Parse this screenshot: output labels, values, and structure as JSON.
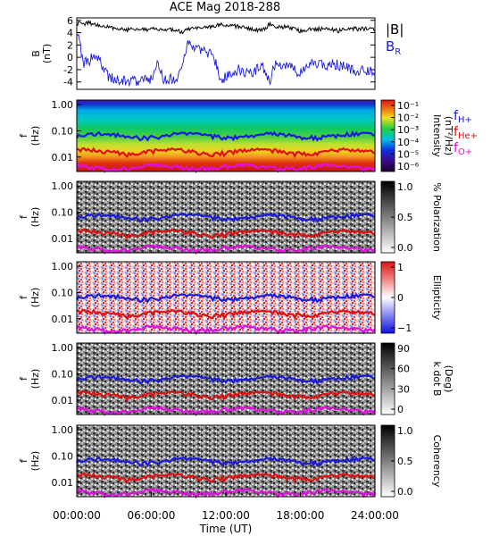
{
  "chart_data": [
    {
      "type": "line",
      "title": "ACE Mag 2018-288",
      "ylabel": "B\n(nT)",
      "ylim": [
        -5.2,
        6.4
      ],
      "yticks": [
        6,
        4,
        2,
        0,
        -2,
        -4
      ],
      "xlim": [
        0,
        24
      ],
      "series": [
        {
          "name": "|B|",
          "color": "#000000",
          "x": [
            0,
            0.5,
            1,
            1.5,
            2,
            3,
            4,
            5,
            6,
            7,
            8,
            8.5,
            9,
            10,
            11,
            12,
            13,
            14,
            15,
            15.5,
            16,
            17,
            18,
            19,
            20,
            21,
            22,
            23,
            24
          ],
          "values": [
            5.5,
            5.4,
            5.6,
            5.3,
            5.0,
            4.8,
            4.4,
            4.7,
            4.5,
            4.6,
            4.3,
            4.0,
            4.6,
            4.6,
            5.1,
            5.3,
            5.0,
            4.5,
            4.4,
            5.4,
            5.0,
            4.9,
            4.3,
            4.6,
            4.6,
            4.3,
            4.6,
            4.6,
            4.5
          ]
        },
        {
          "name": "B",
          "sub": "R",
          "color": "#1a1adc",
          "x": [
            0,
            0.3,
            0.5,
            1,
            1.5,
            2,
            2.5,
            3,
            4,
            5,
            6,
            6.5,
            7,
            8,
            8.5,
            9,
            10,
            11,
            11.5,
            12,
            13,
            14,
            15,
            15.5,
            16,
            17,
            18,
            19,
            20,
            21,
            22,
            23,
            24
          ],
          "values": [
            4.5,
            1.5,
            -1.0,
            -0.5,
            0.5,
            -1.0,
            -3.0,
            -3.5,
            -3.8,
            -3.7,
            -3.6,
            -1.0,
            -3.5,
            -3.7,
            -1.5,
            2.5,
            1.0,
            0.5,
            -3.5,
            -3.2,
            -2.0,
            -2.5,
            -1.5,
            -4.0,
            -1.0,
            -1.5,
            -2.5,
            -1.0,
            -1.3,
            -1.2,
            -2.0,
            -2.2,
            -2.5
          ]
        }
      ]
    },
    {
      "type": "heatmap",
      "ylabel": "f\n(Hz)",
      "yticks": [
        "1.00",
        "0.10",
        "0.01"
      ],
      "colorbar": {
        "label": "Intensity\n(nT²/Hz)",
        "ticks": [
          "10⁻¹",
          "10⁻²",
          "10⁻³",
          "10⁻⁴",
          "10⁻⁵",
          "10⁻⁶"
        ],
        "scale": "rainbow"
      },
      "legend": [
        {
          "name": "f",
          "sub": "H+",
          "color": "#1a1adc"
        },
        {
          "name": "f",
          "sub": "He+",
          "color": "#e01010"
        },
        {
          "name": "f",
          "sub": "O+",
          "color": "#e010e0"
        }
      ]
    },
    {
      "type": "heatmap",
      "ylabel": "f\n(Hz)",
      "yticks": [
        "1.00",
        "0.10",
        "0.01"
      ],
      "colorbar": {
        "label": "% Polarization",
        "ticks": [
          "1.0",
          "0.5",
          "0.0"
        ],
        "scale": "gray"
      }
    },
    {
      "type": "heatmap",
      "ylabel": "f\n(Hz)",
      "yticks": [
        "1.00",
        "0.10",
        "0.01"
      ],
      "colorbar": {
        "label": "Ellipticity",
        "ticks": [
          "1",
          "0",
          "−1"
        ],
        "scale": "bwr"
      }
    },
    {
      "type": "heatmap",
      "ylabel": "f\n(Hz)",
      "yticks": [
        "1.00",
        "0.10",
        "0.01"
      ],
      "colorbar": {
        "label": "k dot B\n(Deg)",
        "ticks": [
          "90",
          "60",
          "30",
          "0"
        ],
        "scale": "gray"
      }
    },
    {
      "type": "heatmap",
      "ylabel": "f\n(Hz)",
      "yticks": [
        "1.00",
        "0.10",
        "0.01"
      ],
      "colorbar": {
        "label": "Coherency",
        "ticks": [
          "1.0",
          "0.5",
          "0.0"
        ],
        "scale": "gray"
      },
      "xlabel": "Time (UT)",
      "xticks": [
        "00:00:00",
        "06:00:00",
        "12:00:00",
        "18:00:00",
        "24:00:00"
      ]
    }
  ],
  "gyro_lines": {
    "time_range": [
      0,
      24
    ],
    "H": 0.065,
    "He": 0.016,
    "O": 0.0041
  }
}
